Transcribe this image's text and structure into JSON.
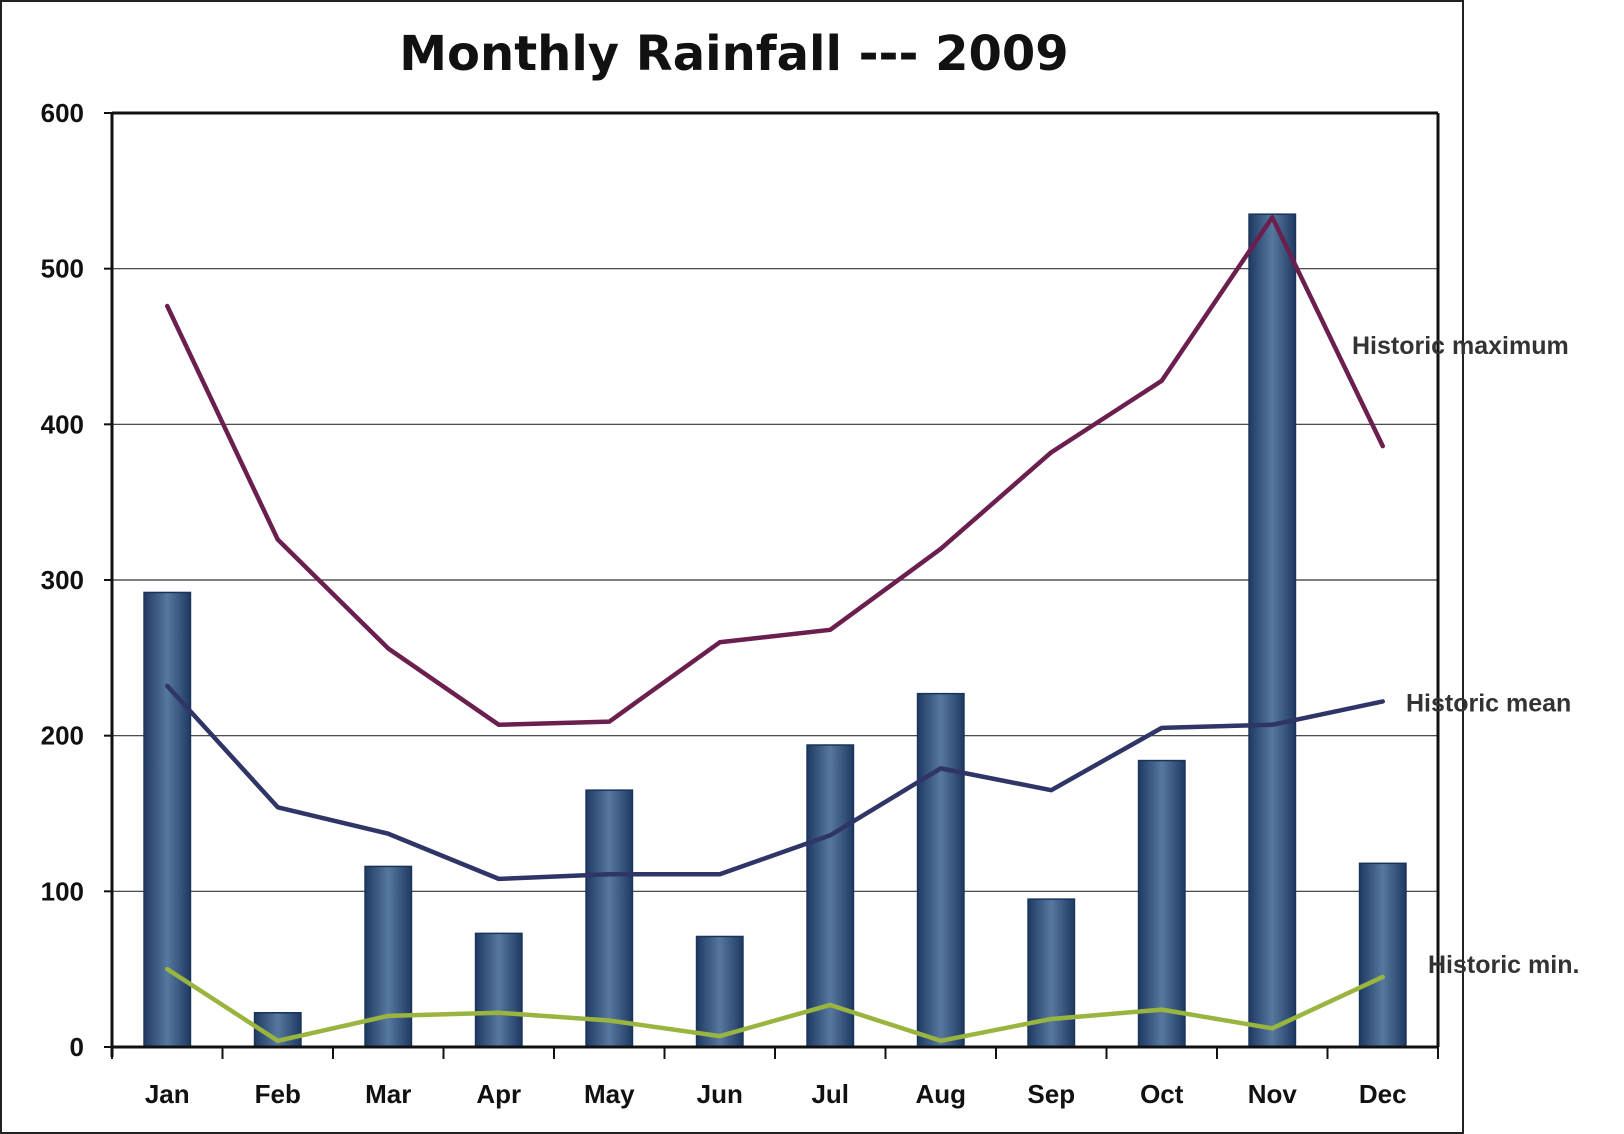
{
  "chart_data": {
    "type": "bar",
    "title": "Monthly Rainfall --- 2009",
    "xlabel": "",
    "ylabel": "",
    "ylim": [
      0,
      600
    ],
    "yticks": [
      0,
      100,
      200,
      300,
      400,
      500,
      600
    ],
    "grid": true,
    "categories": [
      "Jan",
      "Feb",
      "Mar",
      "Apr",
      "May",
      "Jun",
      "Jul",
      "Aug",
      "Sep",
      "Oct",
      "Nov",
      "Dec"
    ],
    "bars": {
      "values": [
        292,
        22,
        116,
        73,
        165,
        71,
        194,
        227,
        95,
        184,
        535,
        118
      ],
      "color": "#3d5f8c"
    },
    "series": [
      {
        "name": "Historic maximum",
        "type": "line",
        "color": "#6b1f4e",
        "values": [
          476,
          326,
          256,
          207,
          209,
          260,
          268,
          320,
          382,
          428,
          533,
          386
        ]
      },
      {
        "name": "Historic mean",
        "type": "line",
        "color": "#2f3566",
        "values": [
          232,
          154,
          137,
          108,
          111,
          111,
          136,
          179,
          165,
          205,
          207,
          222
        ]
      },
      {
        "name": "Historic min.",
        "type": "line",
        "color": "#99b540",
        "values": [
          50,
          4,
          20,
          22,
          17,
          7,
          27,
          4,
          18,
          24,
          12,
          45
        ]
      }
    ]
  }
}
